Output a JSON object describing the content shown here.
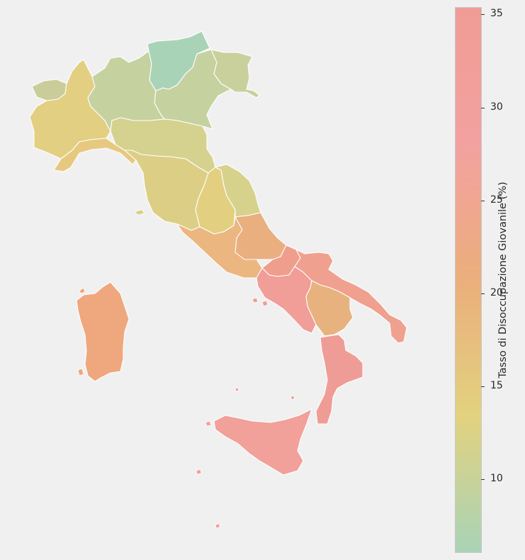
{
  "map": {
    "type": "choropleth",
    "country": "Italia",
    "regions": [
      {
        "name": "Valle d'Aosta",
        "value": 11.5,
        "color": "#cacd99"
      },
      {
        "name": "Piemonte",
        "value": 15.8,
        "color": "#e2cf81"
      },
      {
        "name": "Liguria",
        "value": 16.6,
        "color": "#e6c97f"
      },
      {
        "name": "Lombardia",
        "value": 10.8,
        "color": "#c6d1a0"
      },
      {
        "name": "Trentino-Alto Adige",
        "value": 7.5,
        "color": "#a9d3b6"
      },
      {
        "name": "Veneto",
        "value": 10.8,
        "color": "#c6d1a0"
      },
      {
        "name": "Friuli-Venezia Giulia",
        "value": 11.3,
        "color": "#c9d09c"
      },
      {
        "name": "Emilia-Romagna",
        "value": 13.2,
        "color": "#d4d28e"
      },
      {
        "name": "Toscana",
        "value": 14.8,
        "color": "#dccf85"
      },
      {
        "name": "Umbria",
        "value": 15.6,
        "color": "#e3cf80"
      },
      {
        "name": "Marche",
        "value": 13.5,
        "color": "#d6d28c"
      },
      {
        "name": "Lazio",
        "value": 19.6,
        "color": "#ebb680"
      },
      {
        "name": "Abruzzo",
        "value": 20.5,
        "color": "#eaaf7f"
      },
      {
        "name": "Molise",
        "value": 24.0,
        "color": "#ef9e8d"
      },
      {
        "name": "Campania",
        "value": 34.4,
        "color": "#f19d98"
      },
      {
        "name": "Puglia",
        "value": 25.2,
        "color": "#f0a08f"
      },
      {
        "name": "Basilicata",
        "value": 19.5,
        "color": "#e8b27f"
      },
      {
        "name": "Calabria",
        "value": 35.0,
        "color": "#f09c96"
      },
      {
        "name": "Sicilia",
        "value": 31.4,
        "color": "#f1a09a"
      },
      {
        "name": "Sardegna",
        "value": 21.3,
        "color": "#efa77e"
      }
    ]
  },
  "colorbar": {
    "label": "Tasso di Disoccupazione Giovanile (%)",
    "min": 6.1,
    "max": 35.4,
    "ticks": [
      "10",
      "15",
      "20",
      "25",
      "30",
      "35"
    ],
    "stops": [
      "#a9d3b6",
      "#e2d27f",
      "#ebae7c",
      "#f3a1a0",
      "#f09c96"
    ]
  }
}
